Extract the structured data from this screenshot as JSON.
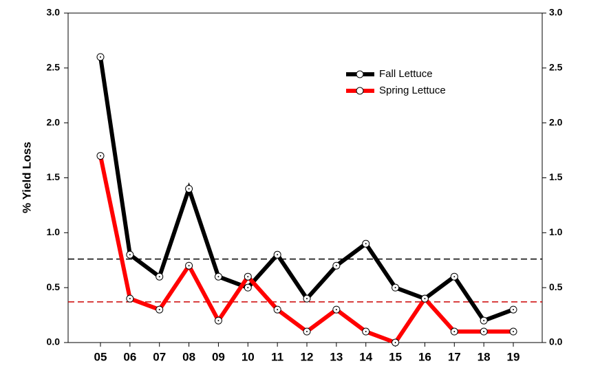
{
  "chart_data": {
    "type": "line",
    "y_label": "% Yield Loss",
    "categories": [
      "05",
      "06",
      "07",
      "08",
      "09",
      "10",
      "11",
      "12",
      "13",
      "14",
      "15",
      "16",
      "17",
      "18",
      "19"
    ],
    "series": [
      {
        "name": "Fall Lettuce",
        "color": "#000000",
        "values": [
          2.6,
          0.8,
          0.6,
          1.4,
          0.6,
          0.5,
          0.8,
          0.4,
          0.7,
          0.9,
          0.5,
          0.4,
          0.6,
          0.2,
          0.3
        ]
      },
      {
        "name": "Spring Lettuce",
        "color": "#ff0000",
        "values": [
          1.7,
          0.4,
          0.3,
          0.7,
          0.2,
          0.6,
          0.3,
          0.1,
          0.3,
          0.1,
          0.0,
          0.4,
          0.1,
          0.1,
          0.1
        ]
      }
    ],
    "reference_lines": [
      {
        "value": 0.76,
        "color": "#000000"
      },
      {
        "value": 0.37,
        "color": "#cc0000"
      }
    ],
    "ylim": [
      0,
      3
    ],
    "yticks": [
      {
        "value": 0,
        "label": "0.0"
      },
      {
        "value": 0.5,
        "label": "0.5"
      },
      {
        "value": 1,
        "label": "1.0"
      },
      {
        "value": 1.5,
        "label": "1.5"
      },
      {
        "value": 2,
        "label": "2.0"
      },
      {
        "value": 2.5,
        "label": "2.5"
      },
      {
        "value": 3,
        "label": "3.0"
      }
    ],
    "y2lim": [
      0,
      3
    ],
    "y2ticks": [
      {
        "value": 0,
        "label": "0.0"
      },
      {
        "value": 0.5,
        "label": "0.5"
      },
      {
        "value": 1,
        "label": "1.0"
      },
      {
        "value": 1.5,
        "label": "1.5"
      },
      {
        "value": 2,
        "label": "2.0"
      },
      {
        "value": 2.5,
        "label": "2.5"
      },
      {
        "value": 3,
        "label": "3.0"
      }
    ],
    "legend": "upper right"
  }
}
